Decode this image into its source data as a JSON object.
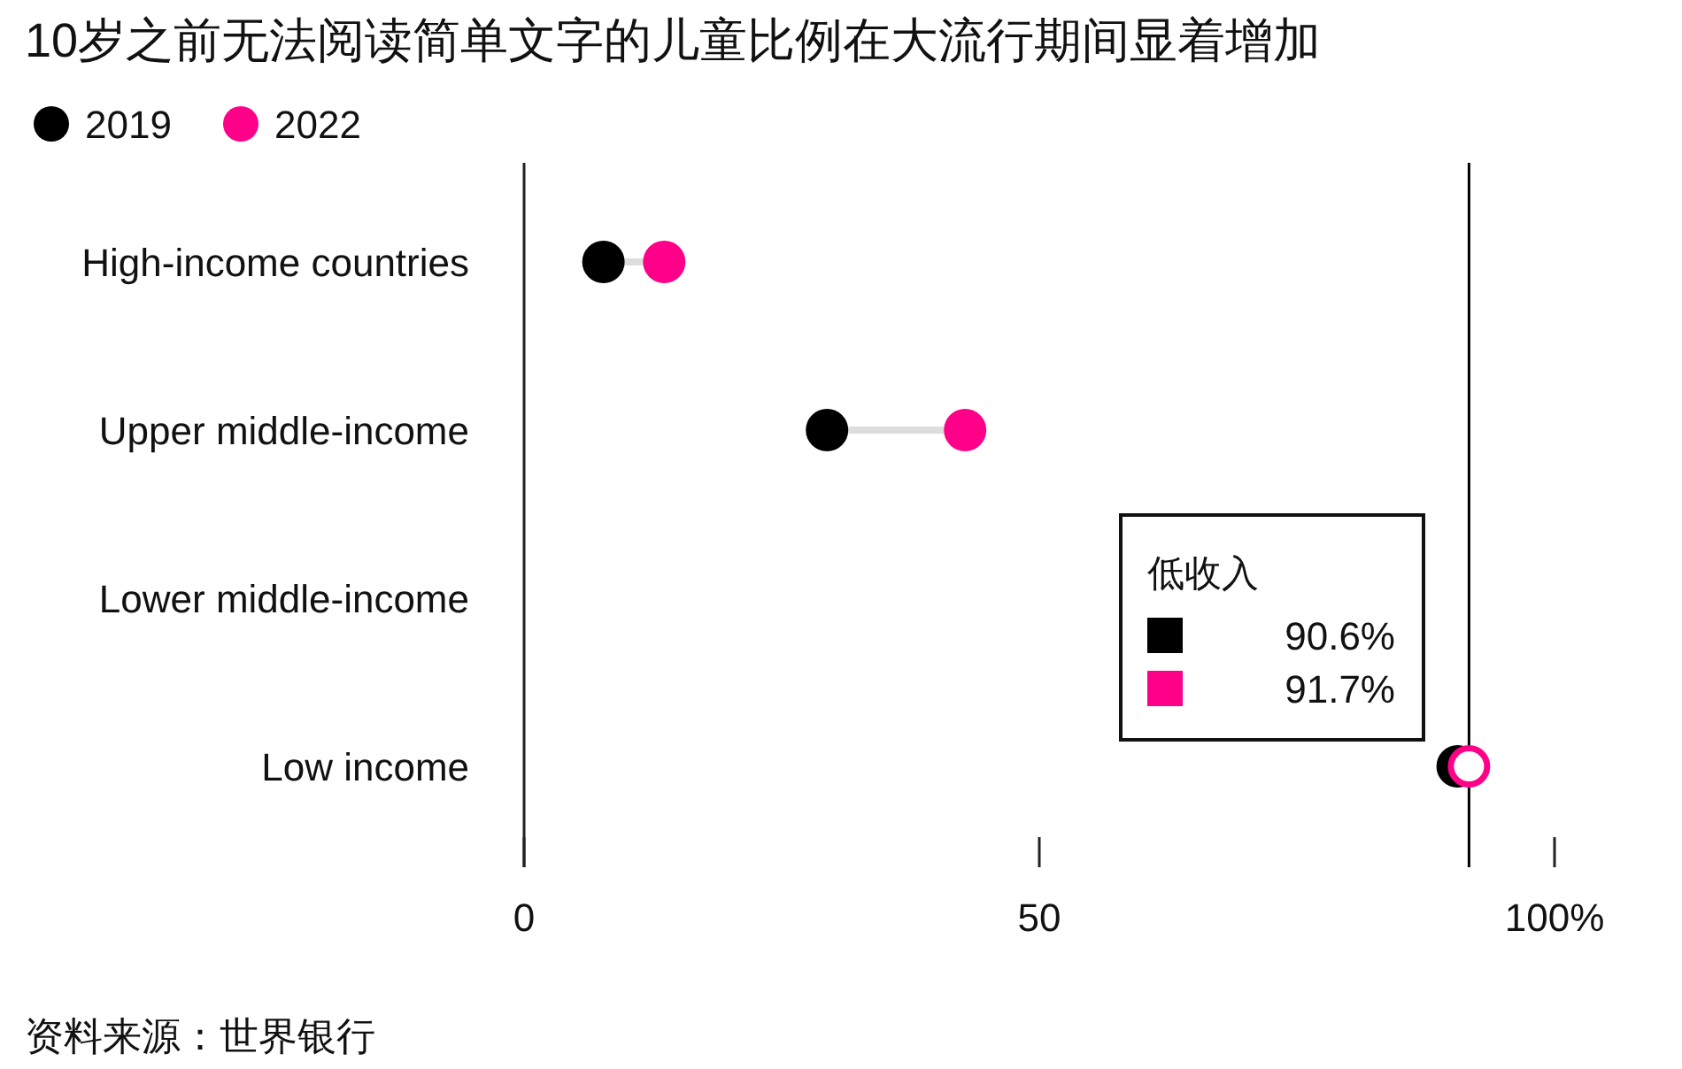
{
  "chart_data": {
    "type": "scatter",
    "title": "10岁之前无法阅读简单文字的儿童比例在大流行期间显着增加",
    "categories": [
      "High-income countries",
      "Upper middle-income",
      "Lower middle-income",
      "Low income"
    ],
    "series": [
      {
        "name": "2019",
        "color": "#000000",
        "values": [
          7.7,
          29.4,
          null,
          90.6
        ]
      },
      {
        "name": "2022",
        "color": "#ff0088",
        "values": [
          13.6,
          42.8,
          null,
          91.7
        ]
      }
    ],
    "orientation": "horizontal",
    "xlim": [
      0,
      100
    ],
    "xticks": [
      0,
      50,
      {
        "value": 100,
        "label": "100%"
      }
    ],
    "ref_lines": [
      {
        "axis": "x",
        "value": 91.7,
        "color": "#000000"
      }
    ],
    "marker": "circle",
    "legend": "top left",
    "grid": false,
    "annotations": [
      "低收入",
      "90.6%",
      "91.7%",
      "资料来源：世界银行"
    ]
  }
}
